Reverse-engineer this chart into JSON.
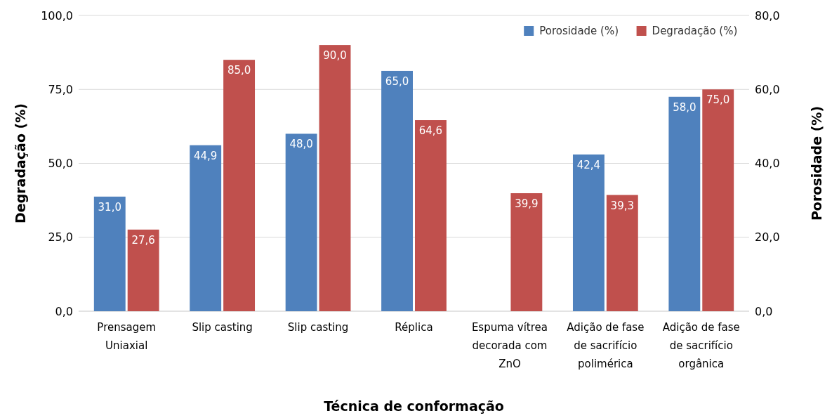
{
  "chart_data": {
    "type": "bar",
    "xlabel": "Técnica de conformação",
    "ylabel": "Degradação (%)",
    "y2label": "Porosidade (%)",
    "categories": [
      "Prensagem Uniaxial",
      "Slip casting",
      "Slip casting",
      "Réplica",
      "Espuma vítrea decorada com ZnO",
      "Adição de fase de sacrifício polimérica",
      "Adição de fase de sacrifício orgânica"
    ],
    "series": [
      {
        "name": "Porosidade (%)",
        "color": "#4f81bd",
        "axis": "y2",
        "values": [
          31.0,
          44.9,
          48.0,
          65.0,
          null,
          42.4,
          58.0
        ],
        "value_labels": [
          "31,0",
          "44,9",
          "48,0",
          "65,0",
          null,
          "42,4",
          "58,0"
        ]
      },
      {
        "name": "Degradação (%)",
        "color": "#c0504d",
        "values": [
          27.6,
          85.0,
          90.0,
          64.6,
          39.9,
          39.3,
          75.0
        ],
        "value_labels": [
          "27,6",
          "85,0",
          "90,0",
          "64,6",
          "39,9",
          "39,3",
          "75,0"
        ]
      }
    ],
    "ylim": [
      0,
      100
    ],
    "yticks": [
      {
        "value": 0,
        "label": "0,0"
      },
      {
        "value": 25,
        "label": "25,0"
      },
      {
        "value": 50,
        "label": "50,0"
      },
      {
        "value": 75,
        "label": "75,0"
      },
      {
        "value": 100,
        "label": "100,0"
      }
    ],
    "y2lim": [
      0,
      80
    ],
    "y2ticks": [
      {
        "value": 0,
        "label": "0,0"
      },
      {
        "value": 20,
        "label": "20,0"
      },
      {
        "value": 40,
        "label": "40,0"
      },
      {
        "value": 60,
        "label": "60,0"
      },
      {
        "value": 80,
        "label": "80,0"
      }
    ],
    "grid": "y",
    "legend": "top right"
  }
}
